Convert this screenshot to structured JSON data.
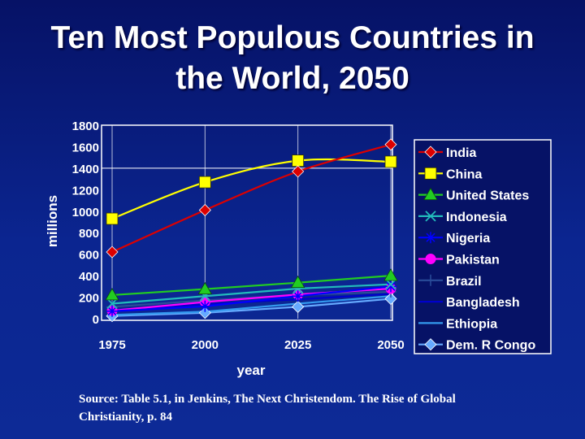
{
  "slide": {
    "title_line1": "Ten Most Populous Countries in",
    "title_line2": "the World, 2050",
    "source_line1": "Source: Table 5.1, in Jenkins, The Next Christendom. The Rise of Global",
    "source_line2": "Christianity, p. 84"
  },
  "chart_data": {
    "type": "line",
    "xlabel": "year",
    "ylabel": "millions",
    "x": [
      "1975",
      "2000",
      "2025",
      "2050"
    ],
    "yticks": [
      0,
      200,
      400,
      600,
      800,
      1000,
      1200,
      1400,
      1600,
      1800
    ],
    "ylim": [
      0,
      1800
    ],
    "legend_position": "right",
    "series": [
      {
        "name": "India",
        "values": [
          620,
          1010,
          1370,
          1620
        ],
        "color": "#dd0000",
        "marker": "diamond",
        "smooth": true
      },
      {
        "name": "China",
        "values": [
          930,
          1270,
          1470,
          1460
        ],
        "color": "#ffff00",
        "marker": "square",
        "smooth": true
      },
      {
        "name": "United States",
        "values": [
          220,
          275,
          335,
          400
        ],
        "color": "#22cc22",
        "marker": "triangle",
        "smooth": false
      },
      {
        "name": "Indonesia",
        "values": [
          140,
          210,
          280,
          320
        ],
        "color": "#22bbbb",
        "marker": "x",
        "smooth": false
      },
      {
        "name": "Nigeria",
        "values": [
          70,
          115,
          210,
          300
        ],
        "color": "#0000ff",
        "marker": "star",
        "smooth": false
      },
      {
        "name": "Pakistan",
        "values": [
          75,
          155,
          225,
          280
        ],
        "color": "#ff00ff",
        "marker": "circle",
        "smooth": false
      },
      {
        "name": "Brazil",
        "values": [
          110,
          170,
          220,
          250
        ],
        "color": "#2a4d9a",
        "marker": "plus",
        "smooth": false
      },
      {
        "name": "Bangladesh",
        "values": [
          80,
          135,
          180,
          230
        ],
        "color": "#0000cc",
        "marker": "none",
        "smooth": false
      },
      {
        "name": "Ethiopia",
        "values": [
          35,
          65,
          140,
          210
        ],
        "color": "#3399ee",
        "marker": "none",
        "smooth": false
      },
      {
        "name": "Dem. R Congo",
        "values": [
          25,
          55,
          110,
          185
        ],
        "color": "#66aaff",
        "marker": "diamond",
        "smooth": false
      }
    ]
  }
}
